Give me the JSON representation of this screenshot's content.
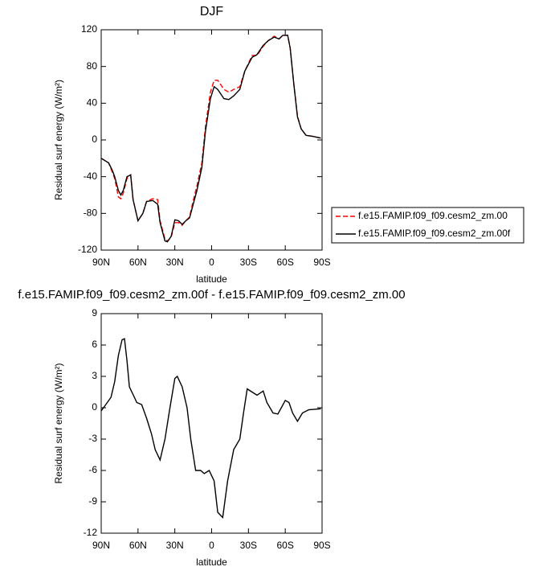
{
  "chart_data": [
    {
      "type": "line",
      "title": "DJF",
      "xlabel": "latitude",
      "ylabel": "Residual surf energy (W/m²)",
      "x": [
        90,
        84,
        81,
        79,
        76,
        74,
        72,
        69,
        66,
        64,
        60,
        56,
        53,
        48,
        44,
        42,
        38,
        36,
        33,
        30,
        27,
        24,
        21,
        18,
        15,
        12,
        8,
        5,
        1,
        -2,
        -5,
        -10,
        -14,
        -18,
        -23,
        -27,
        -33,
        -37,
        -42,
        -46,
        -51,
        -55,
        -58,
        -62,
        -64,
        -67,
        -70,
        -73,
        -77,
        -82,
        -89
      ],
      "series": [
        {
          "name": "f.e15.FAMIP.f09_f09.cesm2_zm.00",
          "color": "#ff0000",
          "dash": "dashed",
          "values": [
            -20,
            -25,
            -35,
            -42,
            -62,
            -64,
            -58,
            -42,
            -38,
            -65,
            -88,
            -80,
            -67,
            -64,
            -65,
            -88,
            -108,
            -110,
            -106,
            -90,
            -90,
            -93,
            -88,
            -84,
            -66,
            -50,
            -25,
            15,
            52,
            65,
            65,
            55,
            52,
            55,
            58,
            75,
            92,
            92,
            102,
            108,
            113,
            110,
            114,
            114,
            100,
            61,
            26,
            12,
            5,
            4,
            2
          ]
        },
        {
          "name": "f.e15.FAMIP.f09_f09.cesm2_zm.00f",
          "color": "#000000",
          "dash": "solid",
          "values": [
            -20,
            -25,
            -33,
            -40,
            -55,
            -60,
            -55,
            -40,
            -38,
            -65,
            -88,
            -80,
            -67,
            -66,
            -70,
            -90,
            -110,
            -111,
            -105,
            -87,
            -88,
            -92,
            -88,
            -85,
            -70,
            -55,
            -30,
            10,
            45,
            58,
            55,
            45,
            44,
            48,
            55,
            75,
            90,
            93,
            103,
            108,
            112,
            110,
            114,
            114,
            100,
            60,
            25,
            12,
            5,
            4,
            2
          ]
        }
      ],
      "xlim": [
        90,
        -90
      ],
      "ylim": [
        -120,
        120
      ],
      "xticks": [
        {
          "value": 90,
          "label": "90N"
        },
        {
          "value": 60,
          "label": "60N"
        },
        {
          "value": 30,
          "label": "30N"
        },
        0,
        {
          "value": -30,
          "label": "30S"
        },
        {
          "value": -60,
          "label": "60S"
        },
        {
          "value": -90,
          "label": "90S"
        }
      ],
      "yticks": [
        -120,
        -80,
        -40,
        0,
        40,
        80,
        120
      ],
      "legend": "outside-right"
    },
    {
      "type": "line",
      "title": "f.e15.FAMIP.f09_f09.cesm2_zm.00f - f.e15.FAMIP.f09_f09.cesm2_zm.00",
      "xlabel": "latitude",
      "ylabel": "Residual surf energy (W/m²)",
      "x": [
        90,
        85,
        82,
        79,
        76,
        73,
        71,
        69,
        67,
        63,
        61,
        57,
        53,
        49,
        46,
        42,
        38,
        34,
        30,
        28,
        24,
        20,
        17,
        13,
        9,
        6,
        2,
        -2,
        -5,
        -9,
        -13,
        -18,
        -23,
        -26,
        -29,
        -33,
        -37,
        -42,
        -45,
        -50,
        -54,
        -60,
        -63,
        -66,
        -70,
        -74,
        -79,
        -89
      ],
      "series": [
        {
          "color": "#000000",
          "dash": "solid",
          "values": [
            -0.3,
            0.5,
            1.0,
            2.5,
            5.0,
            6.5,
            6.6,
            4.5,
            2.0,
            1.0,
            0.5,
            0.3,
            -1,
            -2.5,
            -4,
            -5,
            -3,
            0,
            2.8,
            3.0,
            2.0,
            0,
            -3,
            -6,
            -6,
            -6.3,
            -6,
            -7,
            -10,
            -10.5,
            -7,
            -4,
            -3,
            -0.5,
            1.8,
            1.5,
            1.2,
            1.6,
            0.5,
            -0.5,
            -0.6,
            0.7,
            0.5,
            -0.5,
            -1.3,
            -0.5,
            -0.2,
            -0.1
          ]
        }
      ],
      "xlim": [
        90,
        -90
      ],
      "ylim": [
        -12,
        9
      ],
      "xticks": [
        {
          "value": 90,
          "label": "90N"
        },
        {
          "value": 60,
          "label": "60N"
        },
        {
          "value": 30,
          "label": "30N"
        },
        0,
        {
          "value": -30,
          "label": "30S"
        },
        {
          "value": -60,
          "label": "60S"
        },
        {
          "value": -90,
          "label": "90S"
        }
      ],
      "yticks": [
        -12,
        -9,
        -6,
        -3,
        0,
        3,
        6,
        9
      ]
    }
  ]
}
